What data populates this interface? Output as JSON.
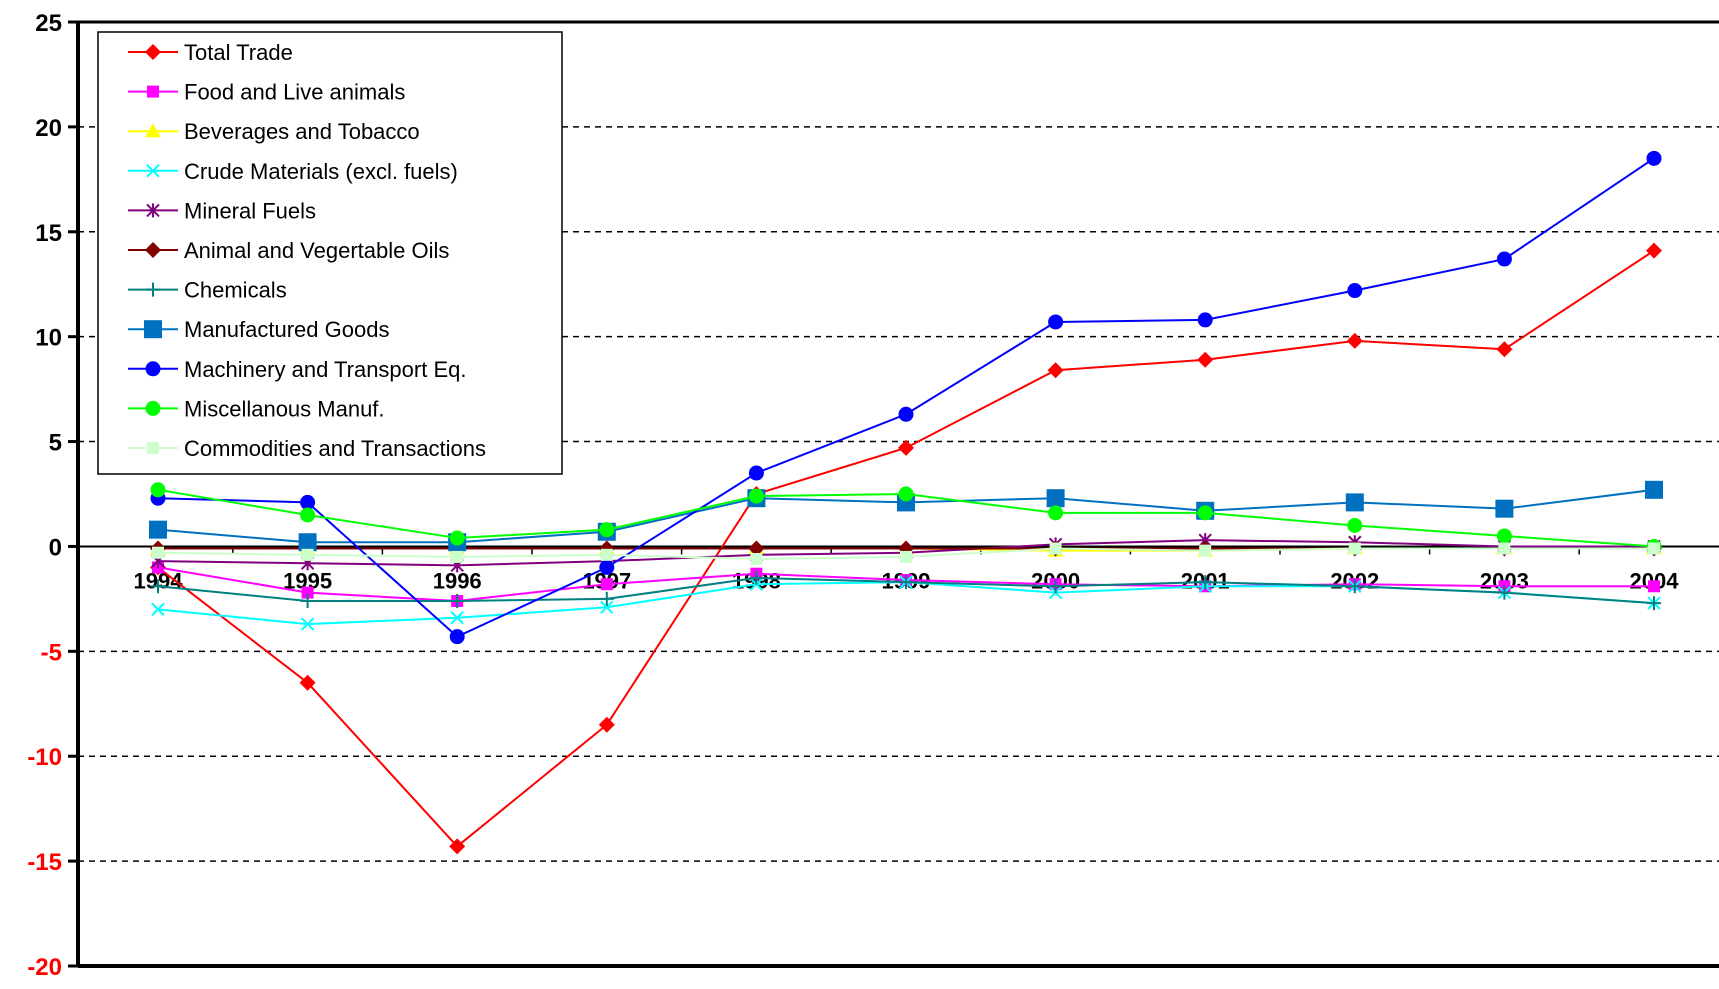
{
  "chart_data": {
    "type": "line",
    "title": "",
    "xlabel": "",
    "ylabel": "",
    "ylim": [
      -20,
      25
    ],
    "y_ticks": [
      25,
      20,
      15,
      10,
      5,
      0,
      -5,
      -10,
      -15,
      -20
    ],
    "y_tick_labels": [
      "25",
      "20",
      "15",
      "10",
      "5",
      "0",
      "-5",
      "-10",
      "-15",
      "-20"
    ],
    "negative_tick_color": "#ff0000",
    "positive_tick_color": "#000000",
    "gridlines": "dashed horizontal at major ticks",
    "legend_position": "top-left",
    "categories": [
      "1994",
      "1995",
      "1996",
      "1997",
      "1998",
      "1999",
      "2000",
      "2001",
      "2002",
      "2003",
      "2004"
    ],
    "series": [
      {
        "name": "Total Trade",
        "color": "#ff0000",
        "marker": "diamond",
        "values": [
          -1.0,
          -6.5,
          -14.3,
          -8.5,
          2.5,
          4.7,
          8.4,
          8.9,
          9.8,
          9.4,
          14.1
        ]
      },
      {
        "name": "Food and Live animals",
        "color": "#ff00ff",
        "marker": "square",
        "values": [
          -1.0,
          -2.2,
          -2.6,
          -1.8,
          -1.3,
          -1.6,
          -1.8,
          -1.9,
          -1.8,
          -1.9,
          -1.9
        ]
      },
      {
        "name": "Beverages and Tobacco",
        "color": "#ffff00",
        "marker": "triangle",
        "values": [
          -0.1,
          -0.1,
          -0.1,
          -0.1,
          -0.1,
          -0.1,
          -0.2,
          -0.2,
          -0.1,
          -0.1,
          -0.1
        ]
      },
      {
        "name": "Crude Materials (excl. fuels)",
        "color": "#00ffff",
        "marker": "x",
        "values": [
          -3.0,
          -3.7,
          -3.4,
          -2.9,
          -1.8,
          -1.7,
          -2.2,
          -1.9,
          -1.9,
          -2.2,
          -2.7
        ]
      },
      {
        "name": "Mineral Fuels",
        "color": "#800080",
        "marker": "star",
        "values": [
          -0.7,
          -0.8,
          -0.9,
          -0.7,
          -0.4,
          -0.3,
          0.1,
          0.3,
          0.2,
          0.0,
          0.0
        ]
      },
      {
        "name": "Animal and Vegertable Oils",
        "color": "#800000",
        "marker": "diamond",
        "values": [
          -0.1,
          -0.1,
          -0.1,
          -0.1,
          -0.1,
          -0.1,
          -0.1,
          -0.1,
          -0.1,
          -0.1,
          -0.1
        ]
      },
      {
        "name": "Chemicals",
        "color": "#008080",
        "marker": "plus",
        "values": [
          -1.9,
          -2.6,
          -2.6,
          -2.5,
          -1.5,
          -1.7,
          -1.9,
          -1.7,
          -1.9,
          -2.2,
          -2.7
        ]
      },
      {
        "name": "Manufactured Goods",
        "color": "#0070c0",
        "marker": "bigsquare",
        "values": [
          0.8,
          0.2,
          0.2,
          0.7,
          2.3,
          2.1,
          2.3,
          1.7,
          2.1,
          1.8,
          2.7
        ]
      },
      {
        "name": "Machinery and Transport Eq.",
        "color": "#0000ff",
        "marker": "circle",
        "values": [
          2.3,
          2.1,
          -4.3,
          -1.0,
          3.5,
          6.3,
          10.7,
          10.8,
          12.2,
          13.7,
          18.5
        ]
      },
      {
        "name": "Miscellanous Manuf.",
        "color": "#00ff00",
        "marker": "circle",
        "values": [
          2.7,
          1.5,
          0.4,
          0.8,
          2.4,
          2.5,
          1.6,
          1.6,
          1.0,
          0.5,
          0.0
        ]
      },
      {
        "name": "Commodities and Transactions",
        "color": "#ccffcc",
        "marker": "square",
        "values": [
          -0.3,
          -0.4,
          -0.5,
          -0.4,
          -0.6,
          -0.5,
          -0.1,
          -0.2,
          -0.1,
          -0.1,
          -0.1
        ]
      }
    ]
  }
}
